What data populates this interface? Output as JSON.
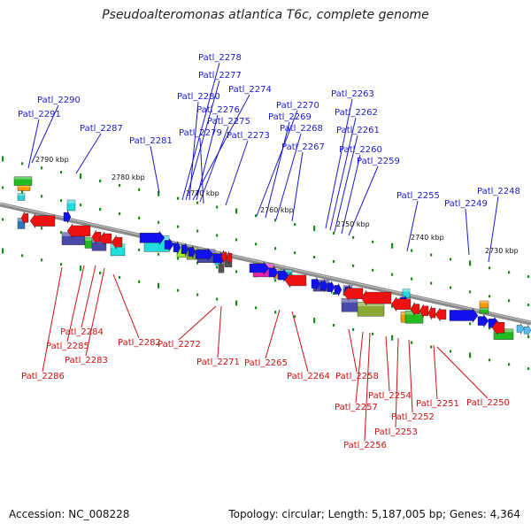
{
  "title": "Pseudoalteromonas atlantica T6c, complete genome",
  "footer": {
    "accession": "Accession: NC_008228",
    "summary": "Topology: circular; Length: 5,187,005 bp; Genes: 4,364"
  },
  "colors": {
    "forward_label": "#1a1acc",
    "reverse_label": "#cc1111",
    "forward_gene": "#1111ee",
    "reverse_gene": "#ee1111",
    "backbone": "#8a8a8a"
  },
  "scale_labels": [
    "2790 kbp",
    "2780 kbp",
    "2770 kbp",
    "2760 kbp",
    "2750 kbp",
    "2740 kbp",
    "2730 kbp"
  ],
  "forward_labels": [
    "Patl_2290",
    "Patl_2291",
    "Patl_2287",
    "Patl_2281",
    "Patl_2278",
    "Patl_2277",
    "Patl_2280",
    "Patl_2274",
    "Patl_2276",
    "Patl_2275",
    "Patl_2279",
    "Patl_2273",
    "Patl_2270",
    "Patl_2269",
    "Patl_2268",
    "Patl_2267",
    "Patl_2263",
    "Patl_2262",
    "Patl_2261",
    "Patl_2260",
    "Patl_2259",
    "Patl_2255",
    "Patl_2249",
    "Patl_2248"
  ],
  "reverse_labels": [
    "Patl_2284",
    "Patl_2285",
    "Patl_2283",
    "Patl_2286",
    "Patl_2282",
    "Patl_2272",
    "Patl_2271",
    "Patl_2265",
    "Patl_2264",
    "Patl_2258",
    "Patl_2257",
    "Patl_2256",
    "Patl_2254",
    "Patl_2253",
    "Patl_2252",
    "Patl_2251",
    "Patl_2250"
  ]
}
